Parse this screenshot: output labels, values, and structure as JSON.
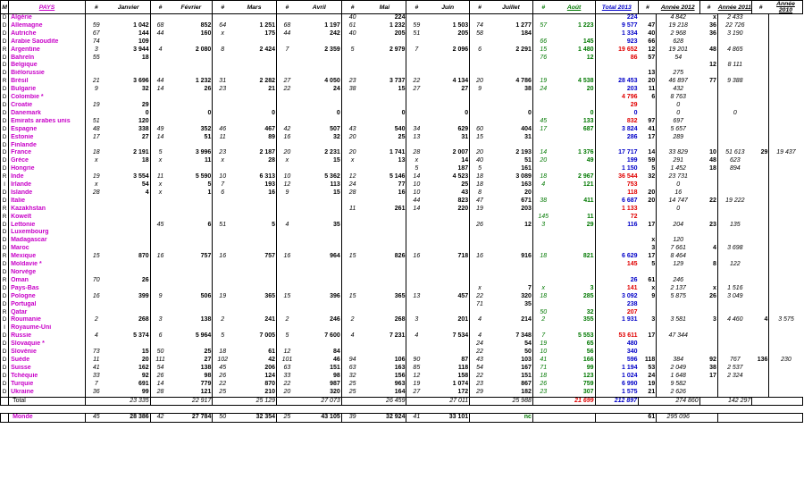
{
  "header": {
    "m": "M",
    "pays": "PAYS",
    "hash": "#",
    "janvier": "Janvier",
    "fevrier": "Février",
    "mars": "Mars",
    "avril": "Avril",
    "mai": "Mai",
    "juin": "Juin",
    "juillet": "Juillet",
    "aout": "Août",
    "total": "Total 2013",
    "annee2012": "Année 2012",
    "annee2011": "Année 2011",
    "annee2010": "Année 2010"
  },
  "rows": [
    [
      "D",
      "Algérie",
      "",
      "",
      "",
      "",
      "",
      "",
      "",
      "",
      "40",
      "224",
      "",
      "",
      "",
      "",
      "",
      "",
      "224",
      "",
      "4 842",
      "x",
      "2 433",
      "",
      ""
    ],
    [
      "D",
      "Allemagne",
      "59",
      "1 042",
      "68",
      "852",
      "64",
      "1 251",
      "68",
      "1 197",
      "61",
      "1 232",
      "59",
      "1 503",
      "74",
      "1 277",
      "57",
      "1 223",
      "9 577",
      "47",
      "19 218",
      "36",
      "22 726",
      "",
      ""
    ],
    [
      "D",
      "Autriche",
      "67",
      "144",
      "44",
      "160",
      "x",
      "175",
      "44",
      "242",
      "40",
      "205",
      "51",
      "205",
      "58",
      "184",
      "",
      "",
      "1 334",
      "40",
      "2 968",
      "36",
      "3 190",
      "",
      ""
    ],
    [
      "D",
      "Arabie Saoudite",
      "74",
      "109",
      "",
      "",
      "",
      "",
      "",
      "",
      "",
      "",
      "",
      "",
      "",
      "",
      "66",
      "145",
      "923",
      "66",
      "628",
      "",
      "",
      "",
      ""
    ],
    [
      "R",
      "Argentine",
      "3",
      "3 944",
      "4",
      "2 080",
      "8",
      "2 424",
      "7",
      "2 359",
      "5",
      "2 979",
      "7",
      "2 096",
      "6",
      "2 291",
      "15",
      "1 480",
      "19 652",
      "12",
      "19 201",
      "48",
      "4 865",
      "",
      ""
    ],
    [
      "D",
      "Bahreïn",
      "55",
      "18",
      "",
      "",
      "",
      "",
      "",
      "",
      "",
      "",
      "",
      "",
      "",
      "",
      "76",
      "12",
      "86",
      "57",
      "54",
      "",
      "",
      "",
      ""
    ],
    [
      "D",
      "Belgique",
      "",
      "",
      "",
      "",
      "",
      "",
      "",
      "",
      "",
      "",
      "",
      "",
      "",
      "",
      "",
      "",
      "",
      "",
      "",
      "12",
      "8 111",
      "",
      ""
    ],
    [
      "D",
      "Biélorussie",
      "",
      "",
      "",
      "",
      "",
      "",
      "",
      "",
      "",
      "",
      "",
      "",
      "",
      "",
      "",
      "",
      "",
      "13",
      "275",
      "",
      "",
      "",
      ""
    ],
    [
      "R",
      "Brésil",
      "21",
      "3 696",
      "44",
      "1 232",
      "31",
      "2 282",
      "27",
      "4 050",
      "23",
      "3 737",
      "22",
      "4 134",
      "20",
      "4 786",
      "19",
      "4 538",
      "28 453",
      "20",
      "46 897",
      "77",
      "9 388",
      "",
      ""
    ],
    [
      "D",
      "Bulgarie",
      "9",
      "32",
      "14",
      "26",
      "23",
      "21",
      "22",
      "24",
      "38",
      "15",
      "27",
      "27",
      "9",
      "38",
      "24",
      "20",
      "203",
      "11",
      "432",
      "",
      "",
      "",
      ""
    ],
    [
      "D",
      "Colombie *",
      "",
      "",
      "",
      "",
      "",
      "",
      "",
      "",
      "",
      "",
      "",
      "",
      "",
      "",
      "",
      "",
      "4 796",
      "6",
      "8 763",
      "",
      "",
      "",
      ""
    ],
    [
      "D",
      "Croatie",
      "19",
      "29",
      "",
      "",
      "",
      "",
      "",
      "",
      "",
      "",
      "",
      "",
      "",
      "",
      "",
      "",
      "29",
      "",
      "0",
      "",
      "",
      "",
      ""
    ],
    [
      "D",
      "Danemark",
      "",
      "0",
      "",
      "0",
      "",
      "0",
      "",
      "0",
      "",
      "0",
      "",
      "0",
      "",
      "0",
      "",
      "0",
      "0",
      "",
      "0",
      "",
      "0",
      "",
      ""
    ],
    [
      "D",
      "Emirats arabes unis",
      "51",
      "120",
      "",
      "",
      "",
      "",
      "",
      "",
      "",
      "",
      "",
      "",
      "",
      "",
      "45",
      "133",
      "832",
      "97",
      "697",
      "",
      "",
      "",
      ""
    ],
    [
      "D",
      "Espagne",
      "48",
      "338",
      "49",
      "352",
      "46",
      "467",
      "42",
      "507",
      "43",
      "540",
      "34",
      "629",
      "60",
      "404",
      "17",
      "687",
      "3 824",
      "41",
      "5 657",
      "",
      "",
      "",
      ""
    ],
    [
      "D",
      "Estonie",
      "17",
      "27",
      "14",
      "51",
      "11",
      "89",
      "16",
      "32",
      "20",
      "25",
      "13",
      "31",
      "15",
      "31",
      "",
      "",
      "286",
      "17",
      "289",
      "",
      "",
      "",
      ""
    ],
    [
      "D",
      "Finlande",
      "",
      "",
      "",
      "",
      "",
      "",
      "",
      "",
      "",
      "",
      "",
      "",
      "",
      "",
      "",
      "",
      "",
      "",
      "",
      "",
      "",
      "",
      ""
    ],
    [
      "D",
      "France",
      "18",
      "2 191",
      "5",
      "3 996",
      "23",
      "2 187",
      "20",
      "2 231",
      "20",
      "1 741",
      "28",
      "2 007",
      "20",
      "2 193",
      "14",
      "1 376",
      "17 717",
      "14",
      "33 829",
      "10",
      "51 613",
      "29",
      "19 437"
    ],
    [
      "D",
      "Grèce",
      "x",
      "18",
      "x",
      "11",
      "x",
      "28",
      "x",
      "15",
      "x",
      "13",
      "x",
      "14",
      "40",
      "51",
      "20",
      "49",
      "199",
      "59",
      "291",
      "48",
      "623",
      "",
      ""
    ],
    [
      "D",
      "Hongrie",
      "",
      "",
      "",
      "",
      "",
      "",
      "",
      "",
      "",
      "",
      "5",
      "187",
      "5",
      "161",
      "",
      "",
      "1 150",
      "5",
      "1 452",
      "18",
      "894",
      "",
      ""
    ],
    [
      "R",
      "Inde",
      "19",
      "3 554",
      "11",
      "5 590",
      "10",
      "6 313",
      "10",
      "5 362",
      "12",
      "5 146",
      "14",
      "4 523",
      "18",
      "3 089",
      "18",
      "2 967",
      "36 544",
      "32",
      "23 731",
      "",
      "",
      "",
      ""
    ],
    [
      "I",
      "Irlande",
      "x",
      "54",
      "x",
      "5",
      "7",
      "193",
      "12",
      "113",
      "24",
      "77",
      "10",
      "25",
      "18",
      "163",
      "4",
      "121",
      "753",
      "",
      "0",
      "",
      "",
      "",
      ""
    ],
    [
      "D",
      "Islande",
      "28",
      "4",
      "x",
      "1",
      "6",
      "16",
      "9",
      "15",
      "28",
      "16",
      "10",
      "43",
      "8",
      "20",
      "",
      "",
      "118",
      "20",
      "16",
      "",
      "",
      "",
      ""
    ],
    [
      "D",
      "Italie",
      "",
      "",
      "",
      "",
      "",
      "",
      "",
      "",
      "",
      "",
      "44",
      "823",
      "47",
      "671",
      "38",
      "411",
      "6 687",
      "20",
      "14 747",
      "22",
      "19 222",
      "",
      ""
    ],
    [
      "R",
      "Kazakhstan",
      "",
      "",
      "",
      "",
      "",
      "",
      "",
      "",
      "11",
      "261",
      "14",
      "220",
      "19",
      "203",
      "",
      "",
      "1 133",
      "",
      "0",
      "",
      "",
      "",
      ""
    ],
    [
      "R",
      "Koweït",
      "",
      "",
      "",
      "",
      "",
      "",
      "",
      "",
      "",
      "",
      "",
      "",
      "",
      "",
      "145",
      "11",
      "72",
      "",
      "",
      "",
      "",
      "",
      ""
    ],
    [
      "D",
      "Lettonie",
      "",
      "",
      "45",
      "6",
      "51",
      "5",
      "4",
      "35",
      "",
      "",
      "",
      "",
      "26",
      "12",
      "3",
      "29",
      "116",
      "17",
      "204",
      "23",
      "135",
      "",
      ""
    ],
    [
      "D",
      "Luxembourg",
      "",
      "",
      "",
      "",
      "",
      "",
      "",
      "",
      "",
      "",
      "",
      "",
      "",
      "",
      "",
      "",
      "",
      "",
      "",
      "",
      "",
      "",
      ""
    ],
    [
      "D",
      "Madagascar",
      "",
      "",
      "",
      "",
      "",
      "",
      "",
      "",
      "",
      "",
      "",
      "",
      "",
      "",
      "",
      "",
      "",
      "x",
      "120",
      "",
      "",
      "",
      ""
    ],
    [
      "D",
      "Maroc",
      "",
      "",
      "",
      "",
      "",
      "",
      "",
      "",
      "",
      "",
      "",
      "",
      "",
      "",
      "",
      "",
      "",
      "3",
      "7 661",
      "4",
      "3 698",
      "",
      ""
    ],
    [
      "R",
      "Mexique",
      "15",
      "870",
      "16",
      "757",
      "16",
      "757",
      "16",
      "964",
      "15",
      "826",
      "16",
      "718",
      "16",
      "916",
      "18",
      "821",
      "6 629",
      "17",
      "8 464",
      "",
      "",
      "",
      ""
    ],
    [
      "D",
      "Moldavie *",
      "",
      "",
      "",
      "",
      "",
      "",
      "",
      "",
      "",
      "",
      "",
      "",
      "",
      "",
      "",
      "",
      "145",
      "5",
      "129",
      "8",
      "122",
      "",
      ""
    ],
    [
      "D",
      "Norvège",
      "",
      "",
      "",
      "",
      "",
      "",
      "",
      "",
      "",
      "",
      "",
      "",
      "",
      "",
      "",
      "",
      "",
      "",
      "",
      "",
      "",
      "",
      ""
    ],
    [
      "R",
      "Oman",
      "70",
      "26",
      "",
      "",
      "",
      "",
      "",
      "",
      "",
      "",
      "",
      "",
      "",
      "",
      "",
      "",
      "26",
      "61",
      "246",
      "",
      "",
      "",
      ""
    ],
    [
      "D",
      "Pays-Bas",
      "",
      "",
      "",
      "",
      "",
      "",
      "",
      "",
      "",
      "",
      "",
      "",
      "x",
      "7",
      "x",
      "3",
      "141",
      "x",
      "2 137",
      "x",
      "1 516",
      "",
      ""
    ],
    [
      "D",
      "Pologne",
      "16",
      "399",
      "9",
      "506",
      "19",
      "365",
      "15",
      "396",
      "15",
      "365",
      "13",
      "457",
      "22",
      "320",
      "18",
      "285",
      "3 092",
      "9",
      "5 875",
      "26",
      "3 049",
      "",
      ""
    ],
    [
      "D",
      "Portugal",
      "",
      "",
      "",
      "",
      "",
      "",
      "",
      "",
      "",
      "",
      "",
      "",
      "71",
      "35",
      "",
      "",
      "238",
      "",
      "",
      "",
      "",
      "",
      ""
    ],
    [
      "R",
      "Qatar",
      "",
      "",
      "",
      "",
      "",
      "",
      "",
      "",
      "",
      "",
      "",
      "",
      "",
      "",
      "50",
      "32",
      "207",
      "",
      "",
      "",
      "",
      "",
      ""
    ],
    [
      "D",
      "Roumanie",
      "2",
      "268",
      "3",
      "138",
      "2",
      "241",
      "2",
      "246",
      "2",
      "268",
      "3",
      "201",
      "4",
      "214",
      "2",
      "355",
      "1 931",
      "3",
      "3 581",
      "3",
      "4 460",
      "4",
      "3 575"
    ],
    [
      "I",
      "Royaume-Uni",
      "",
      "",
      "",
      "",
      "",
      "",
      "",
      "",
      "",
      "",
      "",
      "",
      "",
      "",
      "",
      "",
      "",
      "",
      "",
      "",
      "",
      "",
      ""
    ],
    [
      "D",
      "Russie",
      "4",
      "5 374",
      "6",
      "5 964",
      "5",
      "7 005",
      "5",
      "7 600",
      "4",
      "7 231",
      "4",
      "7 534",
      "4",
      "7 348",
      "7",
      "5 553",
      "53 611",
      "17",
      "47 344",
      "",
      "",
      "",
      ""
    ],
    [
      "D",
      "Slovaquie *",
      "",
      "",
      "",
      "",
      "",
      "",
      "",
      "",
      "",
      "",
      "",
      "",
      "24",
      "54",
      "19",
      "65",
      "480",
      "",
      "",
      "",
      "",
      "",
      ""
    ],
    [
      "D",
      "Slovénie",
      "73",
      "15",
      "50",
      "25",
      "18",
      "61",
      "12",
      "84",
      "",
      "",
      "",
      "",
      "22",
      "50",
      "10",
      "56",
      "340",
      "",
      "",
      "",
      "",
      "",
      ""
    ],
    [
      "D",
      "Suède",
      "11",
      "20",
      "111",
      "27",
      "102",
      "42",
      "101",
      "46",
      "94",
      "106",
      "90",
      "87",
      "43",
      "103",
      "41",
      "166",
      "596",
      "118",
      "384",
      "92",
      "767",
      "136",
      "230"
    ],
    [
      "D",
      "Suisse",
      "41",
      "162",
      "54",
      "138",
      "45",
      "206",
      "63",
      "151",
      "63",
      "163",
      "85",
      "118",
      "54",
      "167",
      "71",
      "99",
      "1 194",
      "53",
      "2 049",
      "38",
      "2 537",
      "",
      ""
    ],
    [
      "D",
      "Tchéquie",
      "33",
      "92",
      "26",
      "98",
      "26",
      "124",
      "33",
      "98",
      "32",
      "156",
      "12",
      "158",
      "22",
      "151",
      "18",
      "123",
      "1 024",
      "24",
      "1 648",
      "17",
      "2 324",
      "",
      ""
    ],
    [
      "D",
      "Turquie",
      "7",
      "691",
      "14",
      "779",
      "22",
      "870",
      "22",
      "987",
      "25",
      "963",
      "19",
      "1 074",
      "23",
      "867",
      "26",
      "759",
      "6 990",
      "19",
      "9 582",
      "",
      "",
      "",
      ""
    ],
    [
      "D",
      "Ukraine",
      "36",
      "99",
      "28",
      "121",
      "25",
      "210",
      "20",
      "320",
      "25",
      "164",
      "27",
      "172",
      "29",
      "182",
      "23",
      "307",
      "1 575",
      "21",
      "2 626",
      "",
      "",
      "",
      ""
    ]
  ],
  "total": {
    "label": "Total",
    "janvier": "23 335",
    "fevrier": "22 917",
    "mars": "25 129",
    "avril": "27 073",
    "mai": "26 459",
    "juin": "27 011",
    "juillet": "25 988",
    "aout": "21 699",
    "total2013": "212 897",
    "annee2012": "274 860",
    "annee2011": "142 297"
  },
  "monde": {
    "label": "Monde",
    "cells": [
      "45",
      "28 386",
      "42",
      "27 784",
      "50",
      "32 354",
      "25",
      "43 105",
      "39",
      "32 924",
      "41",
      "33 101",
      "",
      "nc",
      "",
      "",
      "",
      "61",
      "295 096",
      "",
      "",
      "",
      ""
    ]
  },
  "colors": {
    "country": "#c800c8",
    "aout": "#007800",
    "total2013": "#0000c8",
    "negative": "#e00000"
  }
}
